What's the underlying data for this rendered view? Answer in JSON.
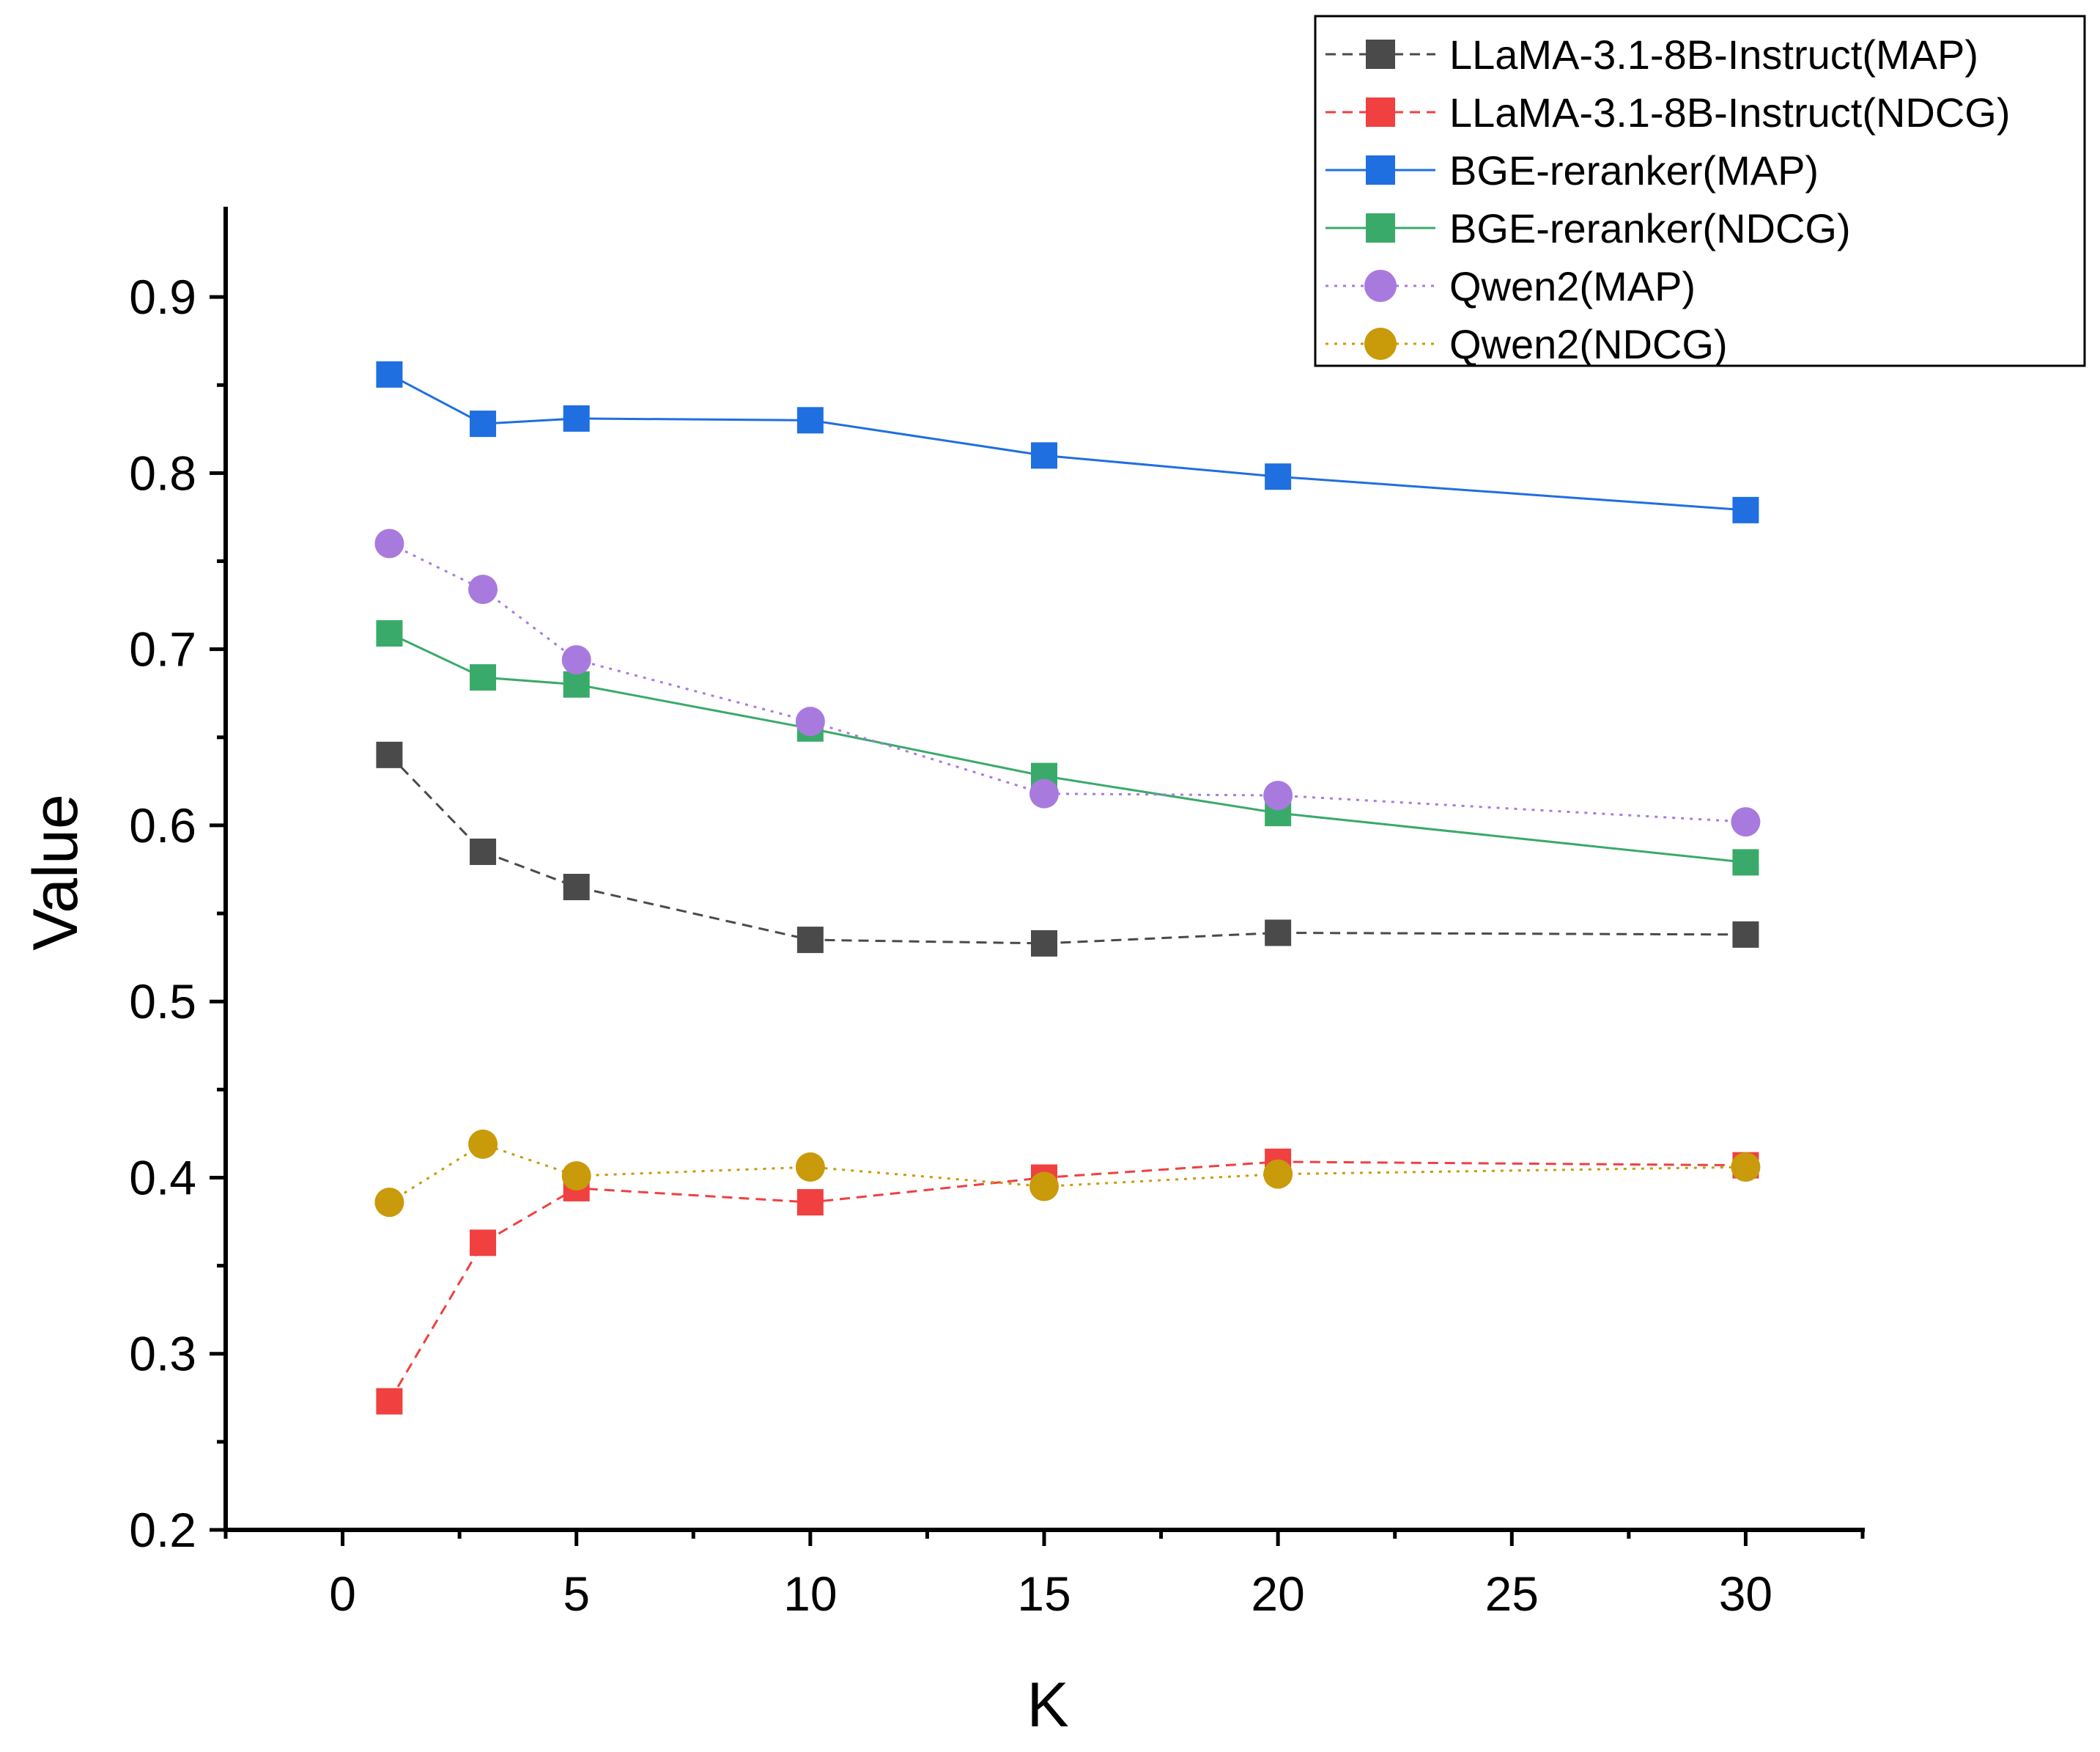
{
  "chart_data": {
    "type": "line",
    "xlabel": "K",
    "ylabel": "Value",
    "xlim": [
      -2.5,
      32.5
    ],
    "ylim": [
      0.2,
      0.95
    ],
    "x_ticks": [
      0,
      5,
      10,
      15,
      20,
      25,
      30
    ],
    "x_tick_labels": [
      "0",
      "5",
      "10",
      "15",
      "20",
      "25",
      "30"
    ],
    "y_ticks": [
      0.2,
      0.3,
      0.4,
      0.5,
      0.6,
      0.7,
      0.8,
      0.9
    ],
    "y_tick_labels": [
      "0.2",
      "0.3",
      "0.4",
      "0.5",
      "0.6",
      "0.7",
      "0.8",
      "0.9"
    ],
    "grid": false,
    "legend_position": "top-right",
    "x": [
      1,
      3,
      5,
      10,
      15,
      20,
      30
    ],
    "series": [
      {
        "name": "LLaMA-3.1-8B-Instruct(MAP)",
        "color": "#4a4a4a",
        "marker": "square",
        "line": "dashed",
        "values": [
          0.64,
          0.585,
          0.565,
          0.535,
          0.533,
          0.539,
          0.538
        ]
      },
      {
        "name": "LLaMA-3.1-8B-Instruct(NDCG)",
        "color": "#f04040",
        "marker": "square",
        "line": "dashed",
        "values": [
          0.273,
          0.363,
          0.394,
          0.386,
          0.4,
          0.409,
          0.407
        ]
      },
      {
        "name": "BGE-reranker(MAP)",
        "color": "#1f6fe0",
        "marker": "square",
        "line": "solid",
        "values": [
          0.856,
          0.828,
          0.831,
          0.83,
          0.81,
          0.798,
          0.779
        ]
      },
      {
        "name": "BGE-reranker(NDCG)",
        "color": "#3aaa6a",
        "marker": "square",
        "line": "solid",
        "values": [
          0.709,
          0.684,
          0.68,
          0.655,
          0.628,
          0.607,
          0.579
        ]
      },
      {
        "name": "Qwen2(MAP)",
        "color": "#a97ade",
        "marker": "circle",
        "line": "dotted",
        "values": [
          0.76,
          0.734,
          0.694,
          0.659,
          0.618,
          0.617,
          0.602
        ]
      },
      {
        "name": "Qwen2(NDCG)",
        "color": "#c99a0a",
        "marker": "circle",
        "line": "dotted",
        "values": [
          0.386,
          0.419,
          0.401,
          0.406,
          0.395,
          0.402,
          0.406
        ]
      }
    ]
  }
}
